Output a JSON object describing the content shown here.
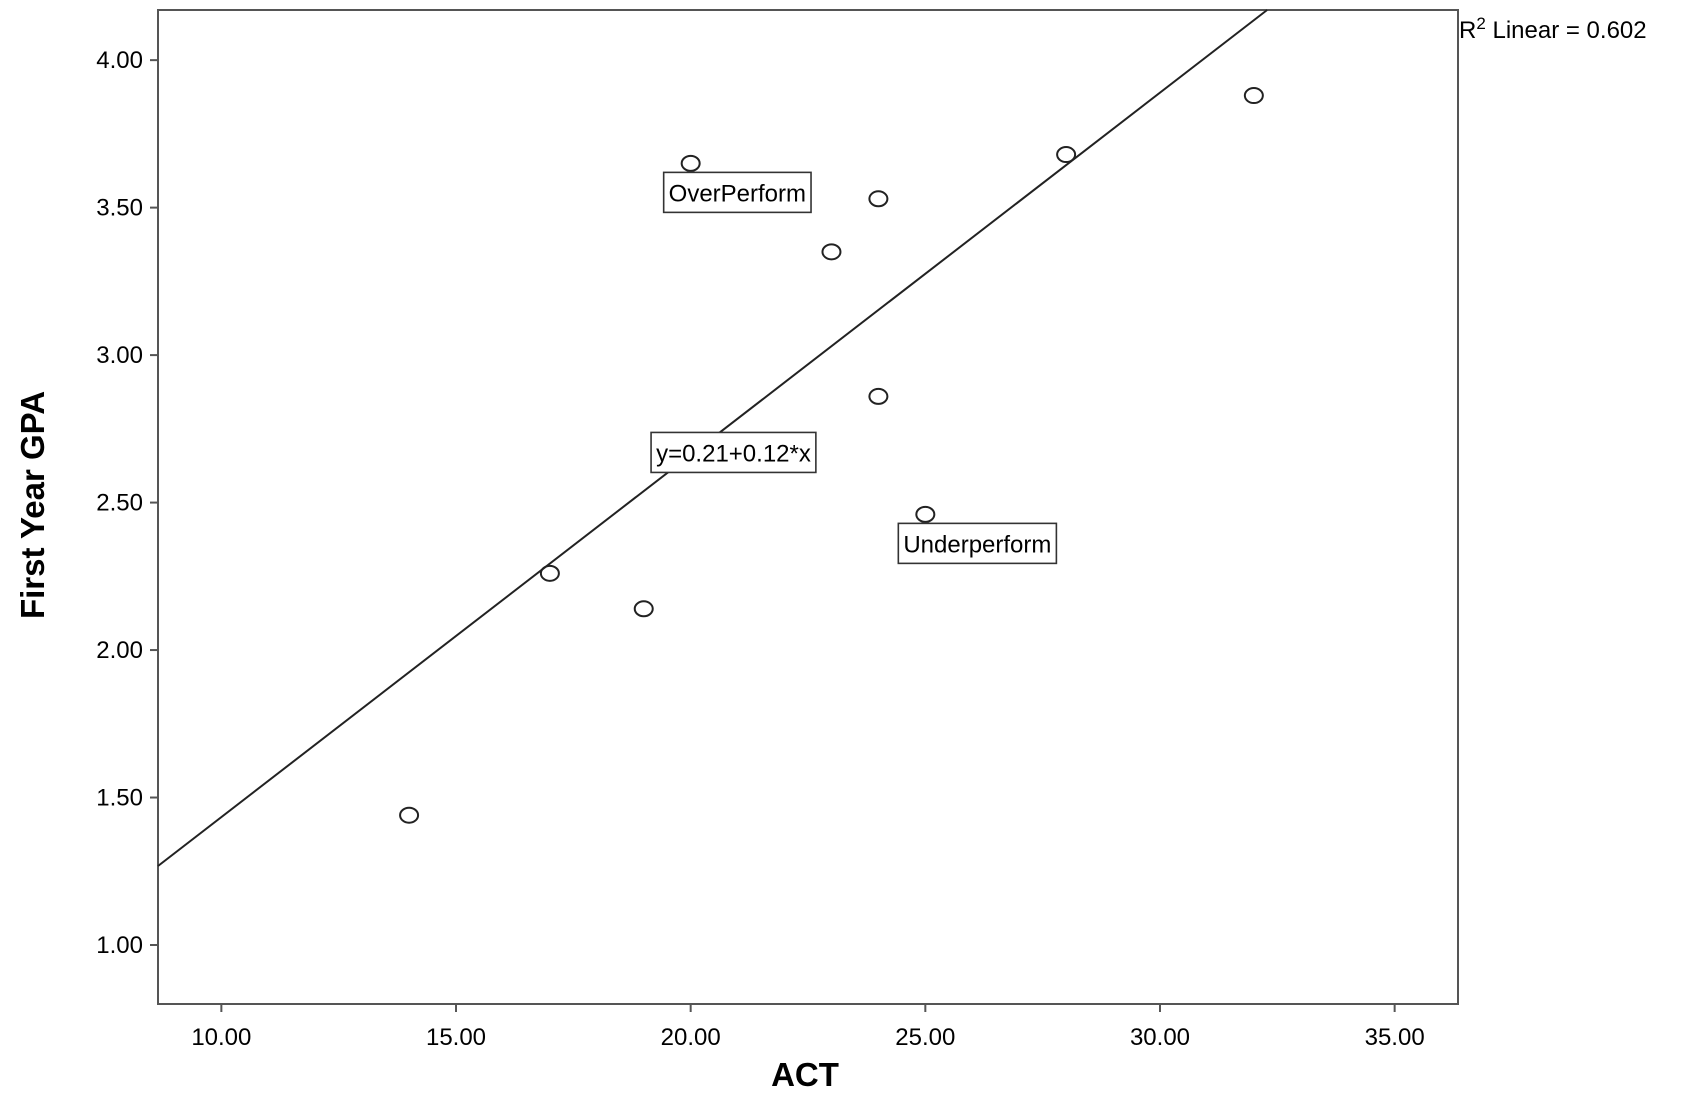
{
  "chart_data": {
    "type": "scatter",
    "xlabel": "ACT",
    "ylabel": "First Year GPA",
    "xlim": [
      8.65,
      36.35
    ],
    "ylim": [
      0.8,
      4.17
    ],
    "x_ticks": [
      10,
      15,
      20,
      25,
      30,
      35
    ],
    "x_tick_labels": [
      "10.00",
      "15.00",
      "20.00",
      "25.00",
      "30.00",
      "35.00"
    ],
    "y_ticks": [
      1.0,
      1.5,
      2.0,
      2.5,
      3.0,
      3.5,
      4.0
    ],
    "y_tick_labels": [
      "1.00",
      "1.50",
      "2.00",
      "2.50",
      "3.00",
      "3.50",
      "4.00"
    ],
    "points": [
      {
        "x": 14,
        "y": 1.44
      },
      {
        "x": 17,
        "y": 2.26
      },
      {
        "x": 19,
        "y": 2.14
      },
      {
        "x": 20,
        "y": 3.65
      },
      {
        "x": 23,
        "y": 3.35
      },
      {
        "x": 24,
        "y": 3.53
      },
      {
        "x": 24,
        "y": 2.86
      },
      {
        "x": 25,
        "y": 2.46
      },
      {
        "x": 28,
        "y": 3.68
      },
      {
        "x": 32,
        "y": 3.88
      }
    ],
    "fit_line": {
      "intercept": 0.2057,
      "slope": 0.1228
    },
    "r_squared_label": {
      "prefix": "R",
      "sup": "2",
      "text": " Linear = 0.602"
    },
    "annotations": [
      {
        "text": "OverPerform",
        "anchor_x": 20,
        "anchor_y": 3.65,
        "placement": "below-right"
      },
      {
        "text": "y=0.21+0.12*x",
        "anchor_x": 21.5,
        "anchor_y": 2.67,
        "placement": "on-line"
      },
      {
        "text": "Underperform",
        "anchor_x": 25,
        "anchor_y": 2.46,
        "placement": "below-right"
      }
    ],
    "grid": false,
    "colors": {
      "axis": "#555555",
      "line": "#222222",
      "marker": "#222222"
    }
  }
}
